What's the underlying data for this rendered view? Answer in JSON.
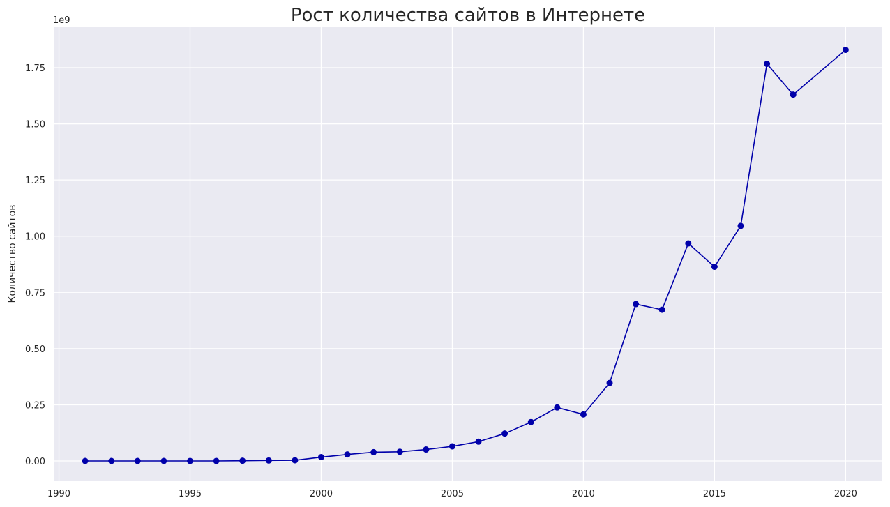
{
  "chart_data": {
    "type": "line",
    "title": "Рост количества сайтов в Интернете",
    "xlabel": "",
    "ylabel": "Количество сайтов",
    "y_offset_label": "1e9",
    "xlim": [
      1989.8,
      2021.4
    ],
    "ylim": [
      -0.09,
      1.93
    ],
    "x_ticks": [
      1990,
      1995,
      2000,
      2005,
      2010,
      2015,
      2020
    ],
    "x_tick_labels": [
      "1990",
      "1995",
      "2000",
      "2005",
      "2010",
      "2015",
      "2020"
    ],
    "y_ticks": [
      0.0,
      0.25,
      0.5,
      0.75,
      1.0,
      1.25,
      1.5,
      1.75
    ],
    "y_tick_labels": [
      "0.00",
      "0.25",
      "0.50",
      "0.75",
      "1.00",
      "1.25",
      "1.50",
      "1.75"
    ],
    "grid": true,
    "colors": {
      "background": "#EAEAF2",
      "grid": "#FFFFFF",
      "series": "#0000AA"
    },
    "series": [
      {
        "x": [
          1991,
          1992,
          1993,
          1994,
          1995,
          1996,
          1997,
          1998,
          1999,
          2000,
          2001,
          2002,
          2003,
          2004,
          2005,
          2006,
          2007,
          2008,
          2009,
          2010,
          2011,
          2012,
          2013,
          2014,
          2015,
          2016,
          2017,
          2018,
          2020
        ],
        "values": [
          0.0,
          0.0,
          0.0,
          0.0,
          0.0,
          0.0,
          0.001,
          0.002,
          0.003,
          0.017,
          0.029,
          0.039,
          0.041,
          0.051,
          0.065,
          0.086,
          0.122,
          0.173,
          0.238,
          0.207,
          0.347,
          0.698,
          0.673,
          0.968,
          0.864,
          1.046,
          1.767,
          1.63,
          1.829
        ]
      }
    ]
  }
}
